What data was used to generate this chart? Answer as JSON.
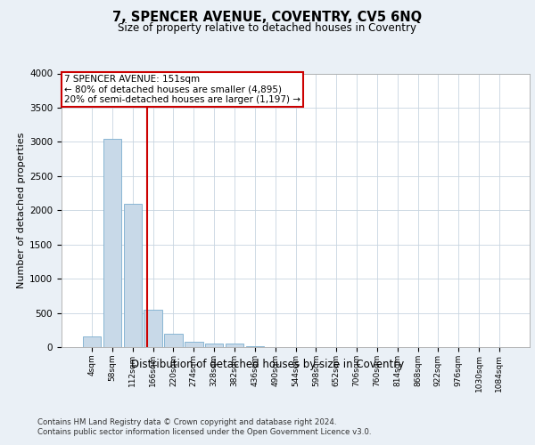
{
  "title": "7, SPENCER AVENUE, COVENTRY, CV5 6NQ",
  "subtitle": "Size of property relative to detached houses in Coventry",
  "xlabel": "Distribution of detached houses by size in Coventry",
  "ylabel": "Number of detached properties",
  "footer_line1": "Contains HM Land Registry data © Crown copyright and database right 2024.",
  "footer_line2": "Contains public sector information licensed under the Open Government Licence v3.0.",
  "bin_labels": [
    "4sqm",
    "58sqm",
    "112sqm",
    "166sqm",
    "220sqm",
    "274sqm",
    "328sqm",
    "382sqm",
    "436sqm",
    "490sqm",
    "544sqm",
    "598sqm",
    "652sqm",
    "706sqm",
    "760sqm",
    "814sqm",
    "868sqm",
    "922sqm",
    "976sqm",
    "1030sqm",
    "1084sqm"
  ],
  "bar_values": [
    150,
    3050,
    2100,
    550,
    200,
    80,
    55,
    50,
    10,
    5,
    0,
    0,
    0,
    0,
    0,
    0,
    0,
    0,
    0,
    0,
    0
  ],
  "bar_color": "#c8d9e8",
  "bar_edgecolor": "#7aadcf",
  "grid_color": "#c8d4e0",
  "background_color": "#eaf0f6",
  "plot_bg_color": "#ffffff",
  "annotation_line1": "7 SPENCER AVENUE: 151sqm",
  "annotation_line2": "← 80% of detached houses are smaller (4,895)",
  "annotation_line3": "20% of semi-detached houses are larger (1,197) →",
  "vline_x": 2.73,
  "vline_color": "#cc0000",
  "annotation_box_edgecolor": "#cc0000",
  "annotation_text_fontsize": 7.5,
  "title_fontsize": 10.5,
  "subtitle_fontsize": 8.5,
  "ylabel_fontsize": 8,
  "xlabel_fontsize": 8.5,
  "ylim": [
    0,
    4000
  ],
  "yticks": [
    0,
    500,
    1000,
    1500,
    2000,
    2500,
    3000,
    3500,
    4000
  ]
}
